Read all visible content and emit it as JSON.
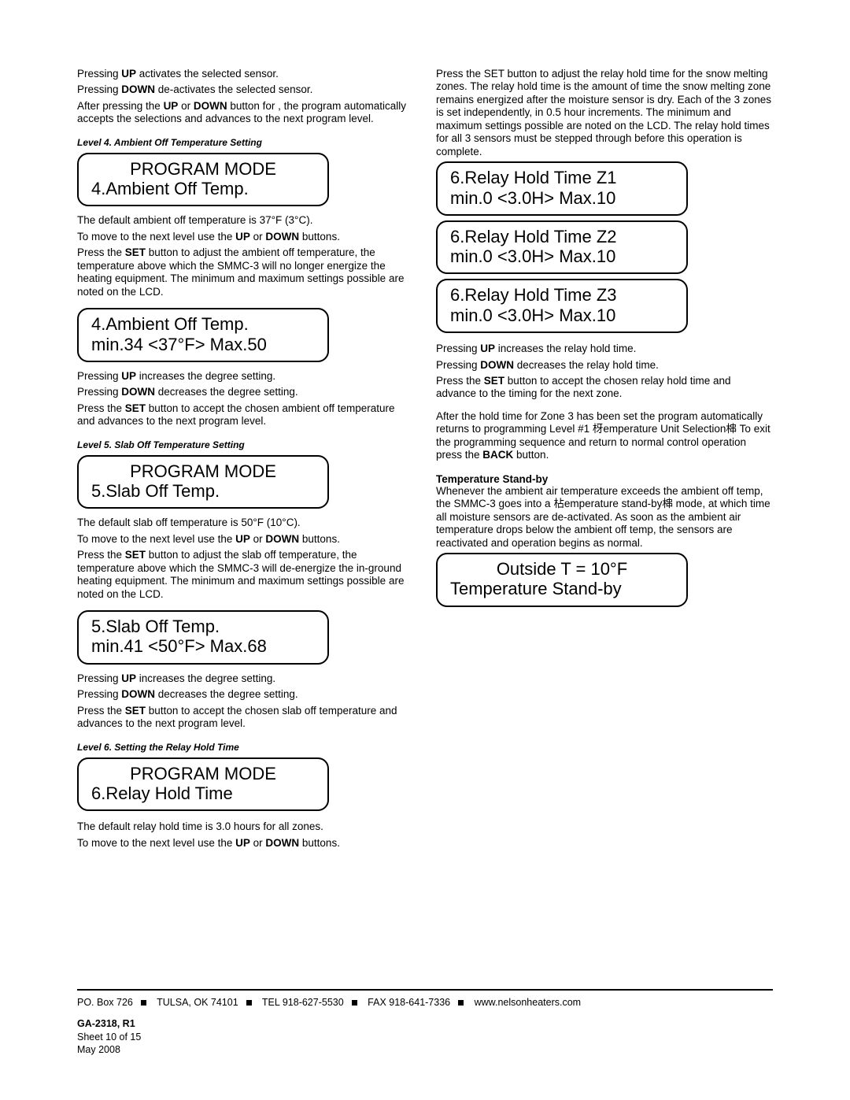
{
  "colors": {
    "text": "#000000",
    "background": "#ffffff",
    "rule": "#000000"
  },
  "left": {
    "intro": [
      "Pressing <b>UP</b> activates the selected sensor.",
      "Pressing <b>DOWN</b> de-activates the selected sensor.",
      "After pressing the <b>UP</b> or <b>DOWN</b> button for <P.Zone3>, the program automatically accepts the selections and advances to the next program level."
    ],
    "level4": {
      "heading": "Level 4. Ambient Off Temperature Setting",
      "lcd1": {
        "line1": "PROGRAM MODE",
        "line2": "4.Ambient Off Temp."
      },
      "para1": [
        "The default ambient off temperature is 37°F (3°C).",
        "To move to the next level use the <b>UP</b> or <b>DOWN</b> buttons.",
        "Press the <b>SET</b> button to adjust the ambient off temperature, the temperature above which the SMMC-3 will no longer energize the heating equipment. The minimum and maximum settings possible are noted on the LCD."
      ],
      "lcd2": {
        "line1": "4.Ambient Off Temp.",
        "line2": "min.34  <37°F>  Max.50"
      },
      "para2": [
        "Pressing <b>UP</b> increases the degree setting.",
        "Pressing <b>DOWN</b> decreases the degree setting.",
        "Press the <b>SET</b> button to accept the chosen ambient off temperature and advances to the next program level."
      ]
    },
    "level5": {
      "heading": "Level 5. Slab Off Temperature Setting",
      "lcd1": {
        "line1": "PROGRAM MODE",
        "line2": "5.Slab Off Temp."
      },
      "para1": [
        "The default slab off temperature is 50°F (10°C).",
        "To move to the next level use the <b>UP</b> or <b>DOWN</b> buttons.",
        "Press the <b>SET</b> button to adjust the slab off temperature, the temperature above which the SMMC-3 will de-energize the in-ground heating equipment. The minimum and maximum settings possible are noted on the LCD."
      ],
      "lcd2": {
        "line1": "5.Slab Off Temp.",
        "line2": "min.41 <50°F> Max.68"
      },
      "para2": [
        "Pressing <b>UP</b> increases the degree setting.",
        "Pressing <b>DOWN</b> decreases the degree setting.",
        "Press the <b>SET</b> button to accept the chosen slab off temperature and advances to the next program level."
      ]
    },
    "level6": {
      "heading": "Level 6. Setting the Relay Hold Time",
      "lcd1": {
        "line1": "PROGRAM MODE",
        "line2": "6.Relay Hold Time"
      },
      "para1": [
        "The default relay hold time is 3.0 hours for all zones.",
        "To move to the next level use the <b>UP</b> or <b>DOWN</b> buttons."
      ]
    }
  },
  "right": {
    "intro": [
      "Press the SET button to adjust the relay hold time for the snow melting zones. The relay hold time is the amount of time the snow melting zone remains energized after the moisture sensor is dry. Each of the 3 zones is set independently, in 0.5 hour increments. The minimum and maximum settings possible are noted on the LCD. The relay hold times for all 3 sensors must be stepped through before this operation is complete."
    ],
    "lcds": [
      {
        "line1": "6.Relay Hold Time Z1",
        "line2": "min.0  <3.0H>  Max.10"
      },
      {
        "line1": "6.Relay Hold Time Z2",
        "line2": "min.0  <3.0H>  Max.10"
      },
      {
        "line1": "6.Relay Hold Time Z3",
        "line2": "min.0  <3.0H>  Max.10"
      }
    ],
    "para1": [
      "Pressing <b>UP</b> increases the relay hold time.",
      "Pressing <b>DOWN</b> decreases the relay hold time.",
      "Press the <b>SET</b> button to accept the chosen relay hold time and advance to the timing for the next zone."
    ],
    "para2": [
      "After the hold time for Zone 3 has been set the program automatically returns to programming Level #1 枒emperature Unit Selection梙 To exit the programming sequence and return to normal control operation press the <b>BACK</b> button."
    ],
    "standby": {
      "heading": "Temperature Stand-by",
      "para": [
        "Whenever the ambient air temperature exceeds the ambient off temp, the SMMC-3 goes into a 枮emperature stand-by梙 mode, at which time all moisture sensors are de-activated. As soon as the ambient air temperature drops below the ambient off temp, the sensors are reactivated and operation begins as normal."
      ],
      "lcd": {
        "line1": "Outside T = 10°F",
        "line2": "Temperature Stand-by"
      }
    }
  },
  "footer": {
    "address": [
      "PO. Box 726",
      "TULSA, OK 74101",
      "TEL 918-627-5530",
      "FAX 918-641-7336",
      "www.nelsonheaters.com"
    ],
    "doc_id": "GA-2318, R1",
    "sheet": "Sheet 10 of 15",
    "date": "May 2008"
  }
}
